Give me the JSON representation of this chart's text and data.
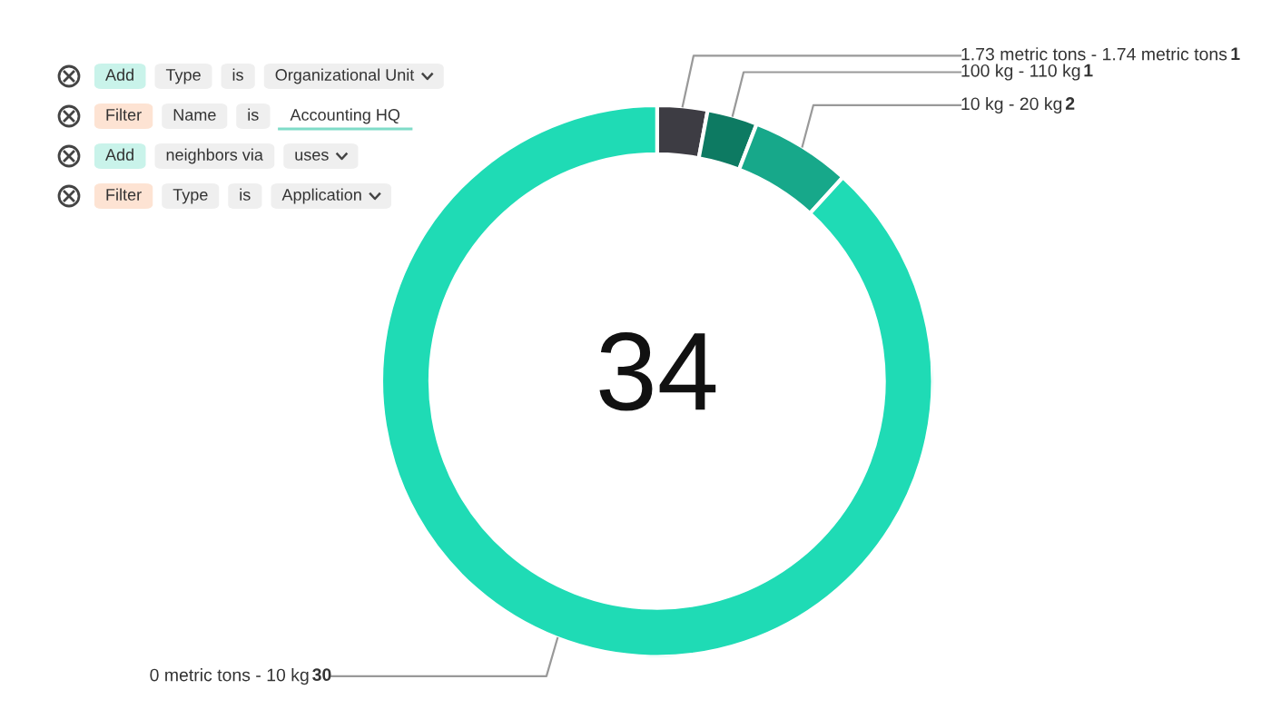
{
  "chart_data": {
    "type": "donut",
    "categories": [
      "1.73 metric tons - 1.74 metric tons",
      "100 kg - 110 kg",
      "10 kg - 20 kg",
      "0 metric tons - 10 kg"
    ],
    "values": [
      1,
      1,
      2,
      30
    ],
    "colors": [
      "#3d3c43",
      "#0d7a62",
      "#17a88a",
      "#1fdbb5"
    ],
    "data_labels": true,
    "annotations": [
      "34",
      "Add",
      "Type",
      "is",
      "Organizational Unit",
      "Filter",
      "Name",
      "is",
      "Accounting HQ",
      "Add",
      "neighbors via",
      "uses",
      "Filter",
      "Type",
      "is",
      "Application"
    ]
  }
}
